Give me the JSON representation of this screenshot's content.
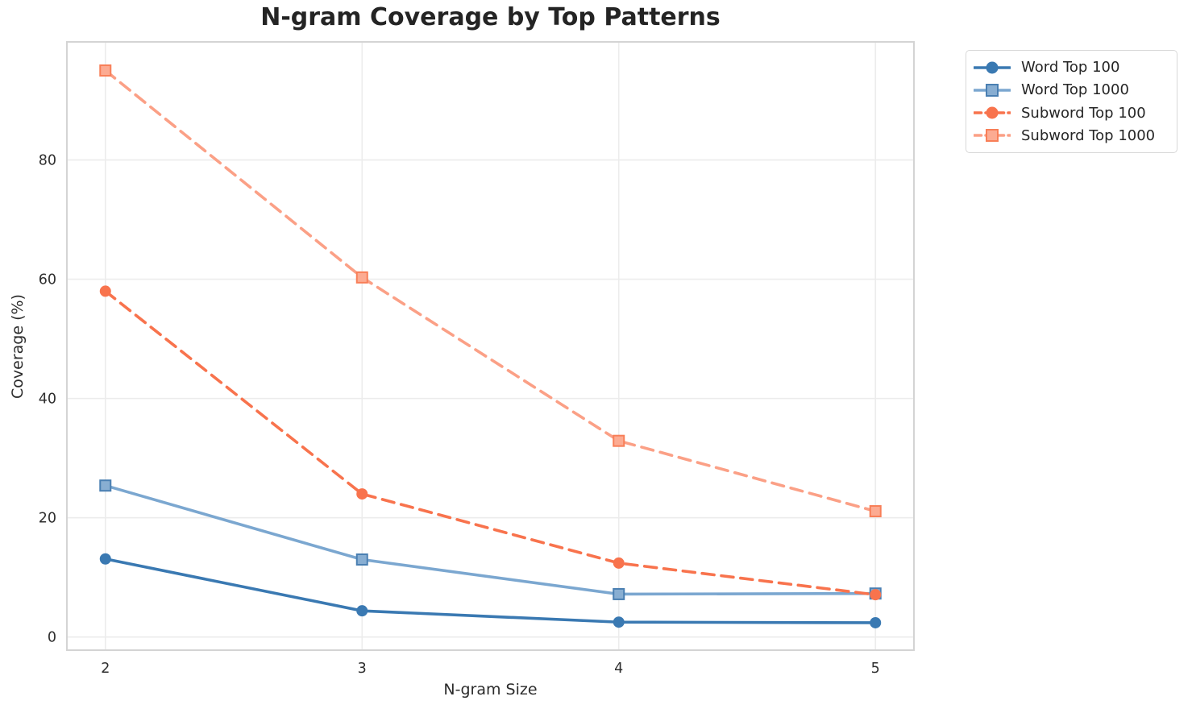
{
  "chart": {
    "title": "N-gram Coverage by Top Patterns",
    "xlabel": "N-gram Size",
    "ylabel": "Coverage (%)"
  },
  "chart_data": {
    "type": "line",
    "title": "N-gram Coverage by Top Patterns",
    "xlabel": "N-gram Size",
    "ylabel": "Coverage (%)",
    "x": [
      2,
      3,
      4,
      5
    ],
    "x_ticks": [
      "2",
      "3",
      "4",
      "5"
    ],
    "y_ticks": [
      "0",
      "20",
      "40",
      "60",
      "80"
    ],
    "xlim": [
      1.85,
      5.15
    ],
    "ylim": [
      -2.2,
      99.8
    ],
    "grid": true,
    "legend_position": "upper right outside axes",
    "background_color": "#ffffff",
    "gridline_color": "#ececec",
    "frame_color": "#d4d4d4",
    "series": [
      {
        "name": "Word Top 100",
        "values": [
          13.1,
          4.4,
          2.5,
          2.4
        ],
        "color": "#3a79b2",
        "marker": "circle",
        "marker_fill": "#3a79b2",
        "marker_edge": "#3a79b2",
        "line_style": "solid"
      },
      {
        "name": "Word Top 1000",
        "values": [
          25.4,
          13.0,
          7.2,
          7.3
        ],
        "color": "#7ba7d0",
        "marker": "square",
        "marker_fill": "#88aed2",
        "marker_edge": "#4a7fb2",
        "line_style": "solid"
      },
      {
        "name": "Subword Top 100",
        "values": [
          58.0,
          24.0,
          12.4,
          7.1
        ],
        "color": "#f8734d",
        "marker": "circle",
        "marker_fill": "#f8734d",
        "marker_edge": "#f8734d",
        "line_style": "dashed"
      },
      {
        "name": "Subword Top 1000",
        "values": [
          95.0,
          60.3,
          32.9,
          21.1
        ],
        "color": "#fba086",
        "marker": "square",
        "marker_fill": "#fcab92",
        "marker_edge": "#f87f58",
        "line_style": "dashed"
      }
    ]
  }
}
